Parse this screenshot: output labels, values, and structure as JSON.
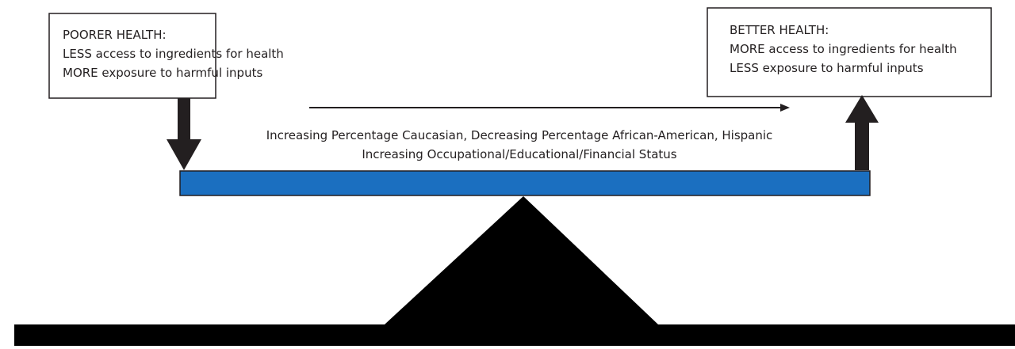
{
  "left_box": {
    "lines": [
      "POORER HEALTH:",
      "LESS access to ingredients for health",
      "MORE exposure to harmful inputs"
    ]
  },
  "right_box": {
    "lines": [
      "BETTER HEALTH:",
      "MORE access to ingredients for health",
      "LESS exposure to harmful inputs"
    ]
  },
  "axis_labels": [
    "Increasing Percentage Caucasian,  Decreasing Percentage African-American, Hispanic",
    "Increasing Occupational/Educational/Financial Status"
  ]
}
